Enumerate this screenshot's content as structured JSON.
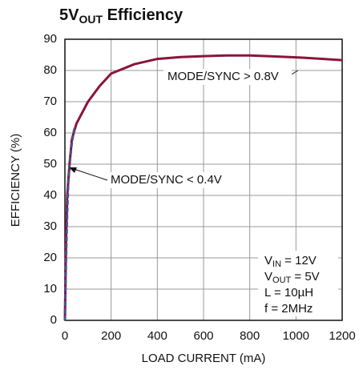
{
  "chart_data": {
    "type": "line",
    "title": [
      "5V",
      "OUT",
      " Efficiency"
    ],
    "xlabel": "LOAD CURRENT (mA)",
    "ylabel": "EFFICIENCY (%)",
    "xlim": [
      0,
      1200
    ],
    "xticks": [
      0,
      200,
      400,
      600,
      800,
      1000,
      1200
    ],
    "ylim": [
      0,
      90
    ],
    "yticks": [
      0,
      10,
      20,
      30,
      40,
      50,
      60,
      70,
      80,
      90
    ],
    "grid": true,
    "series": [
      {
        "name": "MODE/SYNC > 0.8V",
        "color": "#8a1538",
        "dash": false,
        "x": [
          0,
          5,
          10,
          20,
          30,
          50,
          100,
          150,
          200,
          300,
          400,
          500,
          600,
          700,
          800,
          900,
          1000,
          1100,
          1200
        ],
        "values": [
          0,
          25,
          40,
          50,
          58,
          63,
          70,
          75,
          79,
          82,
          83.7,
          84.3,
          84.6,
          84.8,
          84.8,
          84.5,
          84.2,
          83.8,
          83.3
        ]
      },
      {
        "name": "MODE/SYNC < 0.4V",
        "color": "#4a4f8f",
        "dash": true,
        "x": [
          0,
          5,
          10,
          15,
          20,
          30,
          40,
          45
        ],
        "values": [
          0,
          20,
          35,
          45,
          50,
          57,
          61,
          62
        ]
      }
    ],
    "annotations": [
      [
        "V",
        "IN",
        " = 12V"
      ],
      [
        "V",
        "OUT",
        " = 5V"
      ],
      [
        "L = 10µH"
      ],
      [
        "f = 2MHz"
      ]
    ]
  }
}
